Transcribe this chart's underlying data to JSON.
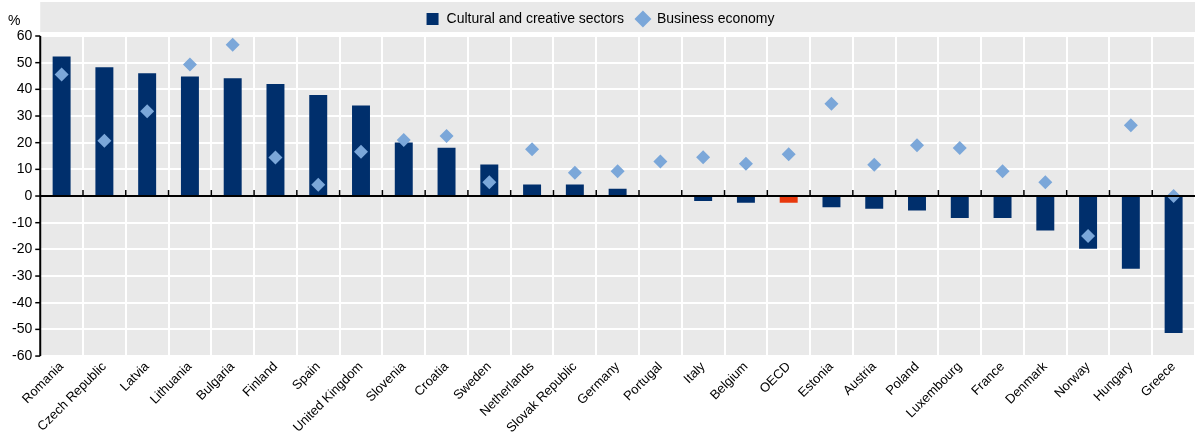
{
  "chart_data": {
    "type": "bar",
    "ylabel": "%",
    "categories": [
      "Romania",
      "Czech Republic",
      "Latvia",
      "Lithuania",
      "Bulgaria",
      "Finland",
      "Spain",
      "United Kingdom",
      "Slovenia",
      "Croatia",
      "Sweden",
      "Netherlands",
      "Slovak Republic",
      "Germany",
      "Portugal",
      "Italy",
      "Belgium",
      "OECD",
      "Estonia",
      "Austria",
      "Poland",
      "Luxembourg",
      "France",
      "Denmark",
      "Norway",
      "Hungary",
      "Greece"
    ],
    "series": [
      {
        "name": "Cultural and creative sectors",
        "color": "#002f6c",
        "colors": [
          "#002f6c",
          "#002f6c",
          "#002f6c",
          "#002f6c",
          "#002f6c",
          "#002f6c",
          "#002f6c",
          "#002f6c",
          "#002f6c",
          "#002f6c",
          "#002f6c",
          "#002f6c",
          "#002f6c",
          "#002f6c",
          "#002f6c",
          "#002f6c",
          "#002f6c",
          "#e8380d",
          "#002f6c",
          "#002f6c",
          "#002f6c",
          "#002f6c",
          "#002f6c",
          "#002f6c",
          "#002f6c",
          "#002f6c",
          "#002f6c"
        ],
        "values": [
          52.3,
          48.3,
          46,
          44.8,
          44.2,
          42,
          37.9,
          33.9,
          20.1,
          18.1,
          11.8,
          4.3,
          4.3,
          2.7,
          0,
          -1.9,
          -2.5,
          -2.5,
          -4.2,
          -4.8,
          -5.4,
          -8.2,
          -8.2,
          -12.9,
          -19.8,
          -27.3,
          -51.4
        ]
      },
      {
        "name": "Business economy",
        "type": "scatter",
        "marker": "diamond",
        "color": "#7ba7d9",
        "x": [
          "Romania",
          "Czech Republic",
          "Latvia",
          "Lithuania",
          "Bulgaria",
          "Finland",
          "Spain",
          "United Kingdom",
          "Slovenia",
          "Croatia",
          "Sweden",
          "Netherlands",
          "Slovak Republic",
          "Germany",
          "Portugal",
          "Italy",
          "Belgium",
          "OECD",
          "Estonia",
          "Austria",
          "Poland",
          "Luxembourg",
          "France",
          "Denmark",
          "Norway",
          "Hungary",
          "Greece"
        ],
        "values": [
          45.6,
          20.7,
          31.8,
          49.3,
          56.7,
          14.4,
          4.2,
          16.6,
          21,
          22.5,
          5.2,
          17.5,
          8.7,
          9.3,
          12.9,
          14.5,
          12.1,
          15.7,
          34.6,
          11.7,
          19,
          18,
          9.3,
          5.2,
          -15,
          26.5,
          0
        ]
      }
    ],
    "ylim": [
      -60,
      60
    ],
    "yticks": [
      -60,
      -50,
      -40,
      -30,
      -20,
      -10,
      0,
      10,
      20,
      30,
      40,
      50,
      60
    ],
    "grid": true,
    "legend": "top"
  }
}
